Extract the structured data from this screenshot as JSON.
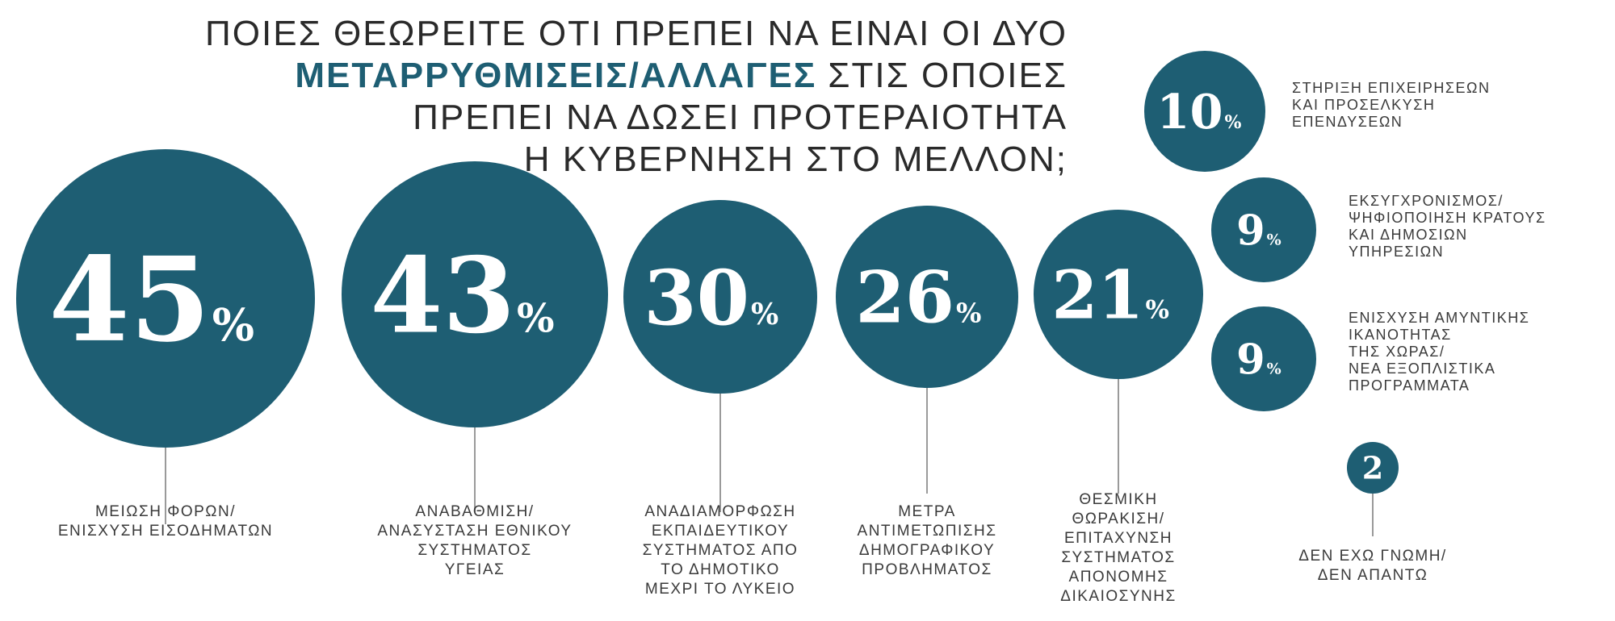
{
  "chart_data": {
    "type": "bubble",
    "title_lines": [
      "ΠΟΙΕΣ ΘΕΩΡΕΙΤΕ ΟΤΙ ΠΡΕΠΕΙ ΝΑ ΕΙΝΑΙ ΟΙ ΔΥΟ",
      "ΣΤΙΣ ΟΠΟΙΕΣ",
      "ΠΡΕΠΕΙ ΝΑ ΔΩΣΕΙ ΠΡΟΤΕΡΑΙΟΤΗΤΑ",
      "Η ΚΥΒΕΡΝΗΣΗ ΣΤΟ ΜΕΛΛΟΝ;"
    ],
    "title_highlight": "ΜΕΤΑΡΡΥΘΜΙΣΕΙΣ/ΑΛΛΑΓΕΣ",
    "unit": "%",
    "items": [
      {
        "value": 45,
        "label_lines": [
          "ΜΕΙΩΣΗ ΦΟΡΩΝ/",
          "ΕΝΙΣΧΥΣΗ ΕΙΣΟΔΗΜΑΤΩΝ"
        ]
      },
      {
        "value": 43,
        "label_lines": [
          "ΑΝΑΒΑΘΜΙΣΗ/",
          "ΑΝΑΣΥΣΤΑΣΗ ΕΘΝΙΚΟΥ",
          "ΣΥΣΤΗΜΑΤΟΣ",
          "ΥΓΕΙΑΣ"
        ]
      },
      {
        "value": 30,
        "label_lines": [
          "ΑΝΑΔΙΑΜΟΡΦΩΣΗ",
          "ΕΚΠΑΙΔΕΥΤΙΚΟΥ",
          "ΣΥΣΤΗΜΑΤΟΣ ΑΠΟ",
          "ΤΟ ΔΗΜΟΤΙΚΟ",
          "ΜΕΧΡΙ ΤΟ ΛΥΚΕΙΟ"
        ]
      },
      {
        "value": 26,
        "label_lines": [
          "ΜΕΤΡΑ",
          "ΑΝΤΙΜΕΤΩΠΙΣΗΣ",
          "ΔΗΜΟΓΡΑΦΙΚΟΥ",
          "ΠΡΟΒΛΗΜΑΤΟΣ"
        ]
      },
      {
        "value": 21,
        "label_lines": [
          "ΘΕΣΜΙΚΗ",
          "ΘΩΡΑΚΙΣΗ/",
          "ΕΠΙΤΑΧΥΝΣΗ",
          "ΣΥΣΤΗΜΑΤΟΣ",
          "ΑΠΟΝΟΜΗΣ",
          "ΔΙΚΑΙΟΣΥΝΗΣ"
        ]
      },
      {
        "value": 10,
        "label_lines": [
          "ΣΤΗΡΙΞΗ ΕΠΙΧΕΙΡΗΣΕΩΝ",
          "ΚΑΙ ΠΡΟΣΕΛΚΥΣΗ",
          "ΕΠΕΝΔΥΣΕΩΝ"
        ]
      },
      {
        "value": 9,
        "label_lines": [
          "ΕΚΣΥΓΧΡΟΝΙΣΜΟΣ/",
          "ΨΗΦΙΟΠΟΙΗΣΗ ΚΡΑΤΟΥΣ",
          "ΚΑΙ ΔΗΜΟΣΙΩΝ",
          "ΥΠΗΡΕΣΙΩΝ"
        ]
      },
      {
        "value": 9,
        "label_lines": [
          "ΕΝΙΣΧΥΣΗ ΑΜΥΝΤΙΚΗΣ",
          "ΙΚΑΝΟΤΗΤΑΣ",
          "ΤΗΣ ΧΩΡΑΣ/",
          "ΝΕΑ ΕΞΟΠΛΙΣΤΙΚΑ",
          "ΠΡΟΓΡΑΜΜΑΤΑ"
        ]
      },
      {
        "value": 2,
        "show_unit": false,
        "label_lines": [
          "ΔΕΝ ΕΧΩ ΓΝΩΜΗ/",
          "ΔΕΝ ΑΠΑΝΤΩ"
        ]
      }
    ],
    "bubble_color": "#1e5e73",
    "line_color": "#9a9a9a"
  }
}
